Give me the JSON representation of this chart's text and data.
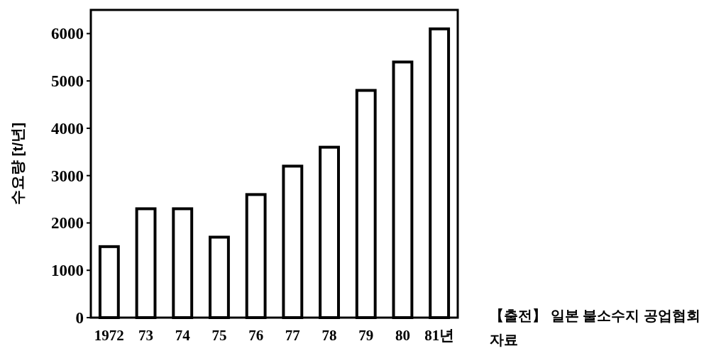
{
  "chart_data": {
    "type": "bar",
    "ylabel": "수요량 [t/년]",
    "categories": [
      "1972",
      "73",
      "74",
      "75",
      "76",
      "77",
      "78",
      "79",
      "80",
      "81년"
    ],
    "values": [
      1500,
      2300,
      2300,
      1700,
      2600,
      3200,
      3600,
      4800,
      5400,
      6100
    ],
    "color": "#ffffff",
    "ylim": [
      0,
      6500
    ],
    "yticks": [
      0,
      1000,
      2000,
      3000,
      4000,
      5000,
      6000
    ],
    "grid": false,
    "annotations": [
      "【출전】 일본 불소수지 공업협회 자료"
    ]
  }
}
